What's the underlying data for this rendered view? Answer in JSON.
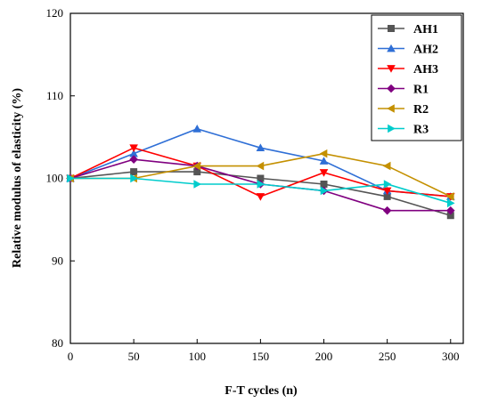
{
  "chart_data": {
    "type": "line",
    "xlabel": "F-T cycles (n)",
    "ylabel": "Relative modulus of elasticity (%)",
    "xlim": [
      0,
      310
    ],
    "ylim": [
      80,
      120
    ],
    "x": [
      0,
      50,
      100,
      150,
      200,
      250,
      300
    ],
    "x_ticks": [
      "0",
      "50",
      "100",
      "150",
      "200",
      "250",
      "300"
    ],
    "y_ticks": [
      "80",
      "90",
      "100",
      "110",
      "120"
    ],
    "legend_position": "top-right",
    "grid": false,
    "series": [
      {
        "name": "AH1",
        "color": "#555555",
        "marker": "square",
        "values": [
          100,
          100.8,
          100.8,
          100,
          99.3,
          97.8,
          95.5
        ]
      },
      {
        "name": "AH2",
        "color": "#2f6fd6",
        "marker": "triangle-up",
        "values": [
          100,
          103,
          106,
          103.7,
          102.1,
          98.5,
          97.8
        ]
      },
      {
        "name": "AH3",
        "color": "#ff0000",
        "marker": "triangle-down",
        "values": [
          100,
          103.7,
          101.5,
          97.8,
          100.7,
          98.5,
          97.8
        ]
      },
      {
        "name": "R1",
        "color": "#800080",
        "marker": "diamond",
        "values": [
          100,
          102.3,
          101.5,
          99.3,
          98.5,
          96.1,
          96.1
        ]
      },
      {
        "name": "R2",
        "color": "#c49000",
        "marker": "triangle-left",
        "values": [
          100,
          100,
          101.5,
          101.5,
          103,
          101.5,
          97.8
        ]
      },
      {
        "name": "R3",
        "color": "#00cccc",
        "marker": "triangle-right",
        "values": [
          100,
          100,
          99.3,
          99.3,
          98.5,
          99.3,
          97
        ]
      }
    ]
  }
}
